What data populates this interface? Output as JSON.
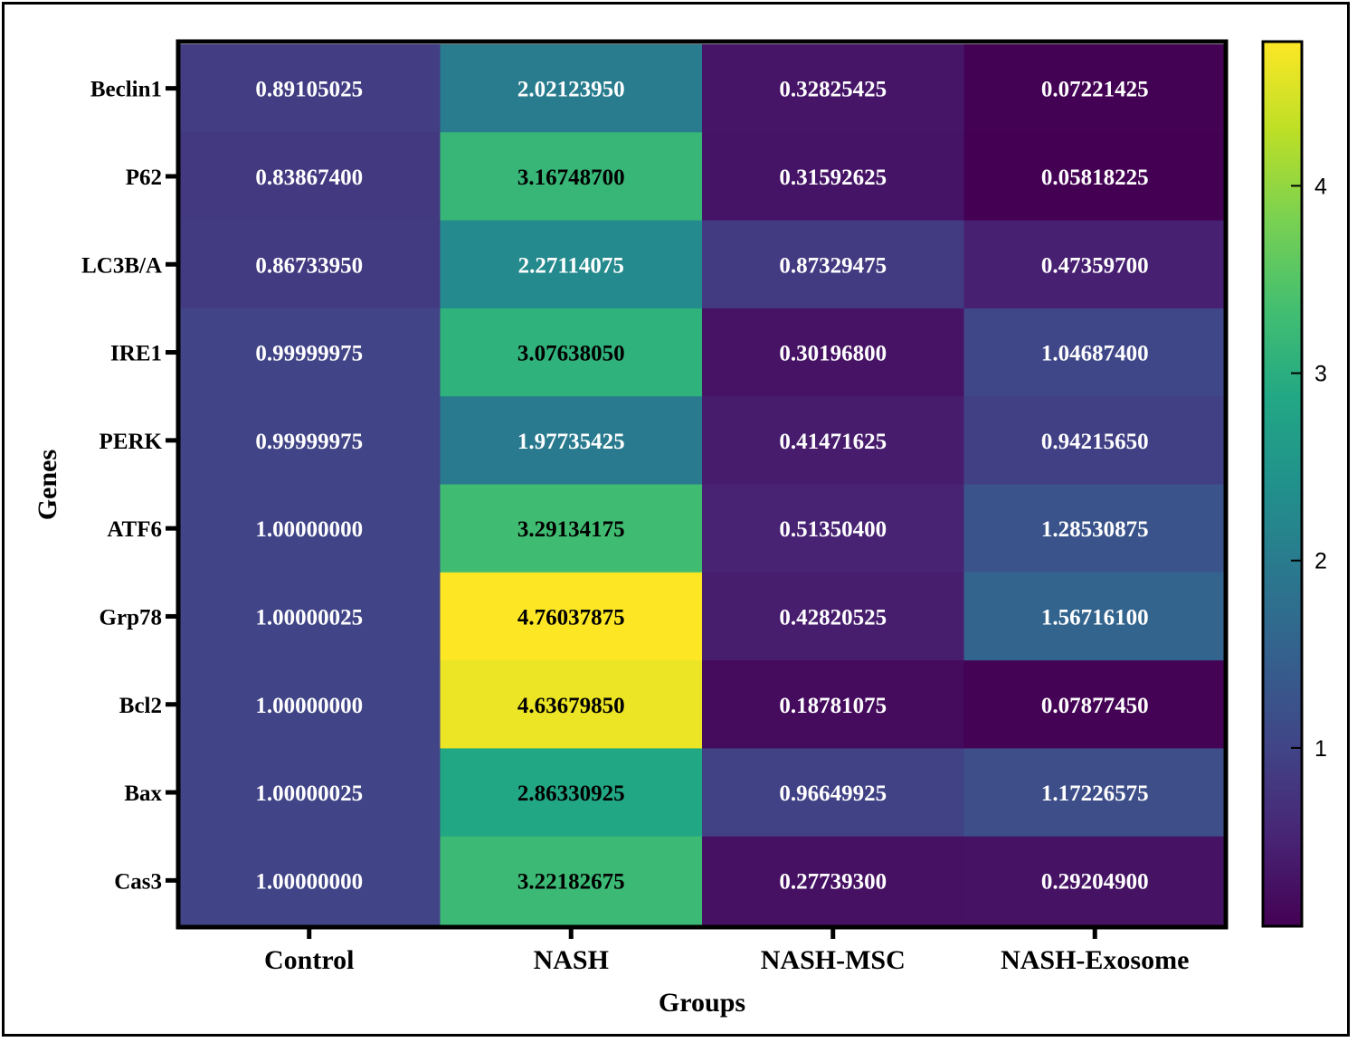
{
  "chart_data": {
    "type": "heatmap",
    "xlabel": "Groups",
    "ylabel": "Genes",
    "columns": [
      "Control",
      "NASH",
      "NASH-MSC",
      "NASH-Exosome"
    ],
    "rows": [
      "Beclin1",
      "P62",
      "LC3B/A",
      "IRE1",
      "PERK",
      "ATF6",
      "Grp78",
      "Bcl2",
      "Bax",
      "Cas3"
    ],
    "values": [
      [
        0.89105025,
        2.0212395,
        0.32825425,
        0.07221425
      ],
      [
        0.838674,
        3.167487,
        0.31592625,
        0.05818225
      ],
      [
        0.8673395,
        2.27114075,
        0.87329475,
        0.473597
      ],
      [
        0.99999975,
        3.0763805,
        0.301968,
        1.046874
      ],
      [
        0.99999975,
        1.97735425,
        0.41471625,
        0.9421565
      ],
      [
        1.0,
        3.29134175,
        0.513504,
        1.28530875
      ],
      [
        1.00000025,
        4.76037875,
        0.42820525,
        1.567161
      ],
      [
        1.0,
        4.6367985,
        0.18781075,
        0.0787745
      ],
      [
        1.00000025,
        2.86330925,
        0.96649925,
        1.17226575
      ],
      [
        1.0,
        3.22182675,
        0.277393,
        0.292049
      ]
    ],
    "value_labels": [
      [
        "0.89105025",
        "2.02123950",
        "0.32825425",
        "0.07221425"
      ],
      [
        "0.83867400",
        "3.16748700",
        "0.31592625",
        "0.05818225"
      ],
      [
        "0.86733950",
        "2.27114075",
        "0.87329475",
        "0.47359700"
      ],
      [
        "0.99999975",
        "3.07638050",
        "0.30196800",
        "1.04687400"
      ],
      [
        "0.99999975",
        "1.97735425",
        "0.41471625",
        "0.94215650"
      ],
      [
        "1.00000000",
        "3.29134175",
        "0.51350400",
        "1.28530875"
      ],
      [
        "1.00000025",
        "4.76037875",
        "0.42820525",
        "1.56716100"
      ],
      [
        "1.00000000",
        "4.63679850",
        "0.18781075",
        "0.07877450"
      ],
      [
        "1.00000025",
        "2.86330925",
        "0.96649925",
        "1.17226575"
      ],
      [
        "1.00000000",
        "3.22182675",
        "0.27739300",
        "0.29204900"
      ]
    ],
    "colorscale": "viridis",
    "color_range": [
      0.058,
      4.76
    ],
    "colorbar_ticks": [
      "1",
      "2",
      "3",
      "4"
    ],
    "colorbar_tick_values": [
      1,
      2,
      3,
      4
    ],
    "legend_position": "right",
    "text_color_dark": "#000000",
    "text_color_light": "#ffffff"
  }
}
